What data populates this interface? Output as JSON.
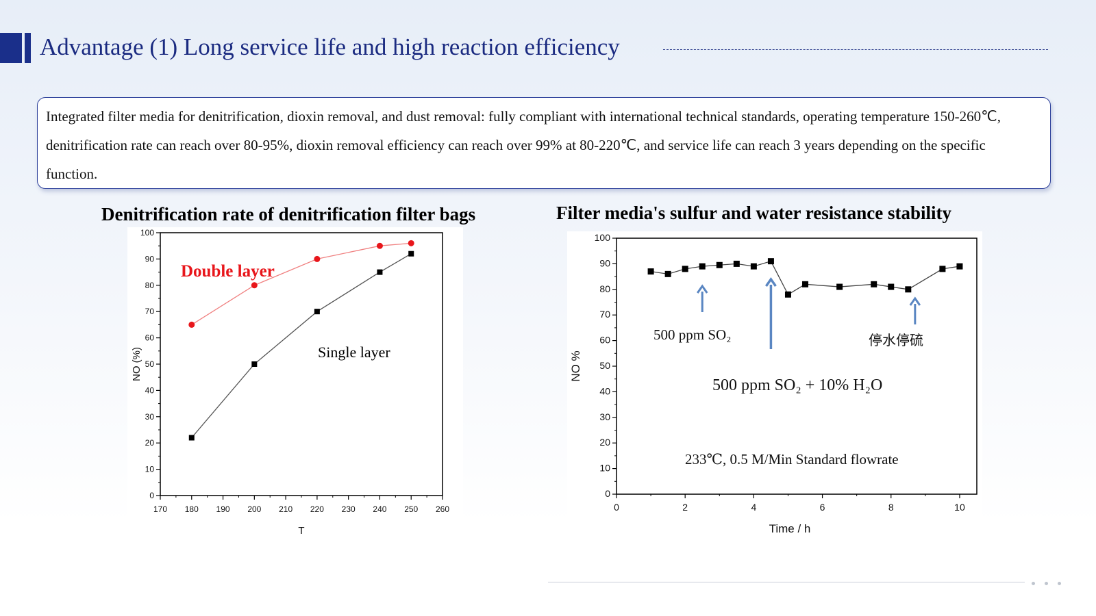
{
  "title": "Advantage (1) Long service life and high reaction efficiency",
  "description": "Integrated filter media for denitrification, dioxin removal, and dust removal: fully compliant with international technical standards, operating temperature 150-260℃, denitrification rate can reach over 80-95%, dioxin removal efficiency can reach over 99% at 80-220℃, and service life can reach 3 years depending on the specific function.",
  "charts": {
    "left_heading": "Denitrification rate of denitrification filter bags",
    "right_heading": "Filter media's sulfur and water resistance stability"
  },
  "colors": {
    "title": "#1a2a80",
    "accent_block": "#1a2f8a",
    "double_layer": "#e8161b",
    "double_layer_line": "#f08080",
    "arrow": "#5a86c2"
  },
  "chart_data": [
    {
      "type": "line",
      "title": "Denitrification rate of denitrification filter bags",
      "xlabel": "T",
      "ylabel": "NO (%)",
      "xlim": [
        170,
        260
      ],
      "ylim": [
        0,
        100
      ],
      "xticks": [
        170,
        180,
        190,
        200,
        210,
        220,
        230,
        240,
        250,
        260
      ],
      "yticks": [
        0,
        10,
        20,
        30,
        40,
        50,
        60,
        70,
        80,
        90,
        100
      ],
      "series": [
        {
          "name": "Double layer",
          "marker": "circle",
          "color": "#e8161b",
          "x": [
            180,
            200,
            220,
            240,
            250
          ],
          "y": [
            65,
            80,
            90,
            95,
            96
          ]
        },
        {
          "name": "Single layer",
          "marker": "square",
          "color": "#000000",
          "x": [
            180,
            200,
            220,
            240,
            250
          ],
          "y": [
            22,
            50,
            70,
            85,
            92
          ]
        }
      ],
      "grid": false
    },
    {
      "type": "line",
      "title": "Filter media's sulfur and water resistance stability",
      "xlabel": "Time / h",
      "ylabel": "NO %",
      "xlim": [
        0,
        10.5
      ],
      "ylim": [
        0,
        100
      ],
      "xticks": [
        0,
        2,
        4,
        6,
        8,
        10
      ],
      "yticks": [
        0,
        10,
        20,
        30,
        40,
        50,
        60,
        70,
        80,
        90,
        100
      ],
      "series": [
        {
          "marker": "square",
          "color": "#000000",
          "x": [
            1.0,
            1.5,
            2.0,
            2.5,
            3.0,
            3.5,
            4.0,
            4.5,
            5.0,
            5.5,
            6.5,
            7.5,
            8.0,
            8.5,
            9.5,
            10.0
          ],
          "y": [
            87,
            86,
            88,
            89,
            89.5,
            90,
            89,
            91,
            78,
            82,
            81,
            82,
            81,
            80,
            88,
            89
          ]
        }
      ],
      "annotations": [
        {
          "text": "500 ppm SO₂",
          "arrow_x": 2.5
        },
        {
          "text": "500 ppm SO₂  + 10% H₂O",
          "arrow_x": 4.5
        },
        {
          "text": "停水停硫",
          "arrow_x": 8.7
        },
        {
          "text": "233℃, 0.5 M/Min Standard flowrate"
        }
      ],
      "grid": false
    }
  ]
}
